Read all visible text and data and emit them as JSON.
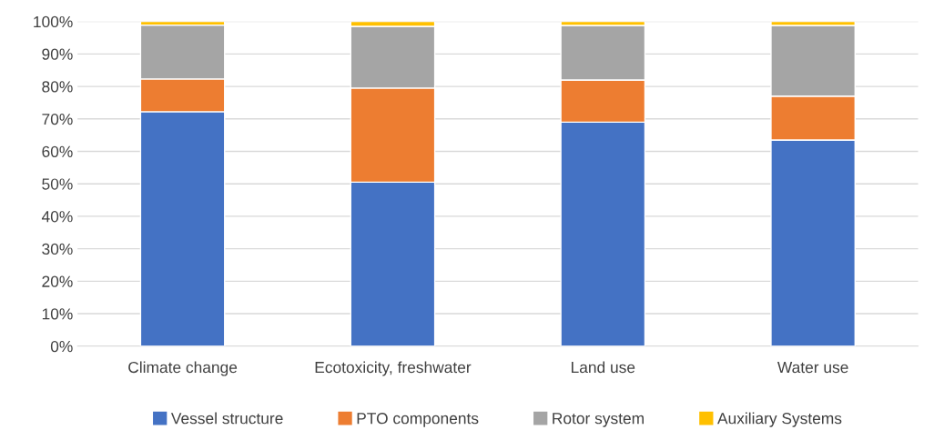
{
  "chart_data": {
    "type": "bar",
    "stacked": true,
    "categories": [
      "Climate change",
      "Ecotoxicity, freshwater",
      "Land use",
      "Water use"
    ],
    "series": [
      {
        "name": "Vessel structure",
        "color": "#4472c4",
        "values": [
          72.2,
          50.5,
          69.0,
          63.5
        ]
      },
      {
        "name": "PTO components",
        "color": "#ed7d31",
        "values": [
          10.1,
          29.0,
          13.0,
          13.5
        ]
      },
      {
        "name": "Rotor system",
        "color": "#a5a5a5",
        "values": [
          16.6,
          19.0,
          16.8,
          21.8
        ]
      },
      {
        "name": "Auxiliary Systems",
        "color": "#ffc000",
        "values": [
          1.1,
          1.5,
          1.2,
          1.2
        ]
      }
    ],
    "ylim": [
      0,
      100
    ],
    "yticks": [
      {
        "value": 0,
        "label": "0%"
      },
      {
        "value": 10,
        "label": "10%"
      },
      {
        "value": 20,
        "label": "20%"
      },
      {
        "value": 30,
        "label": "30%"
      },
      {
        "value": 40,
        "label": "40%"
      },
      {
        "value": 50,
        "label": "50%"
      },
      {
        "value": 60,
        "label": "60%"
      },
      {
        "value": 70,
        "label": "70%"
      },
      {
        "value": 80,
        "label": "80%"
      },
      {
        "value": 90,
        "label": "90%"
      },
      {
        "value": 100,
        "label": "100%"
      }
    ],
    "grid": "y",
    "legend": "bottom"
  }
}
